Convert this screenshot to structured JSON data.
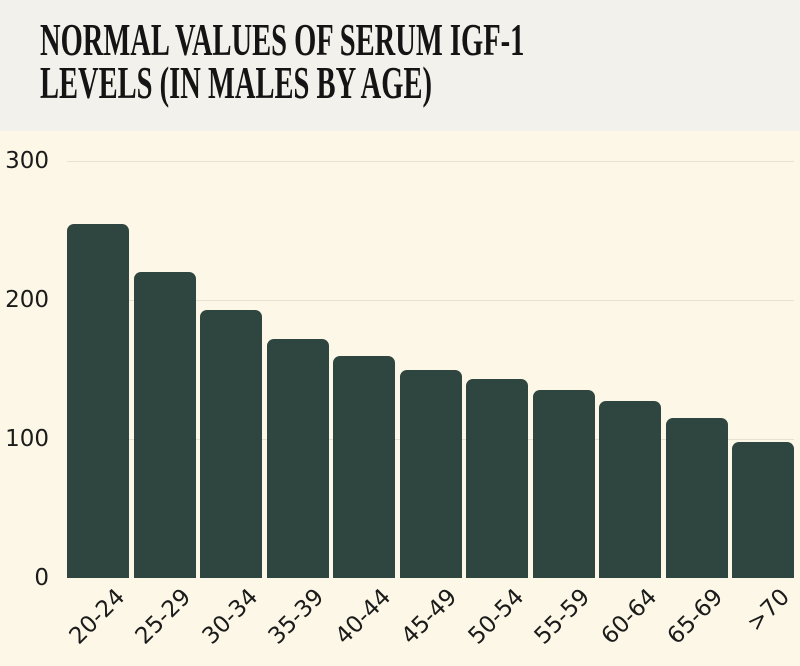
{
  "title_area": {
    "title_lines": [
      "NORMAL VALUES OF SERUM IGF-1",
      "LEVELS (IN MALES BY AGE)"
    ]
  },
  "chart_data": {
    "type": "bar",
    "title": "NORMAL VALUES OF SERUM IGF-1 LEVELS (IN MALES BY AGE)",
    "categories": [
      "20-24",
      "25-29",
      "30-34",
      "35-39",
      "40-44",
      "45-49",
      "50-54",
      "55-59",
      "60-64",
      "65-69",
      ">70"
    ],
    "values": [
      255,
      220,
      193,
      172,
      160,
      150,
      143,
      135,
      127,
      115,
      98
    ],
    "xlabel": "",
    "ylabel": "",
    "ylim": [
      0,
      300
    ],
    "yticks": [
      0,
      100,
      200,
      300
    ],
    "ytick_labels": [
      "0",
      "100",
      "200",
      "300"
    ],
    "grid": true,
    "legend": false,
    "bar_color": "#2f453f",
    "background": "#fcf7e6",
    "title_background": "#f2f1ec",
    "gridline_color": "#e6e1d1",
    "text_color": "#1b1b1b",
    "title_color": "#141414"
  }
}
